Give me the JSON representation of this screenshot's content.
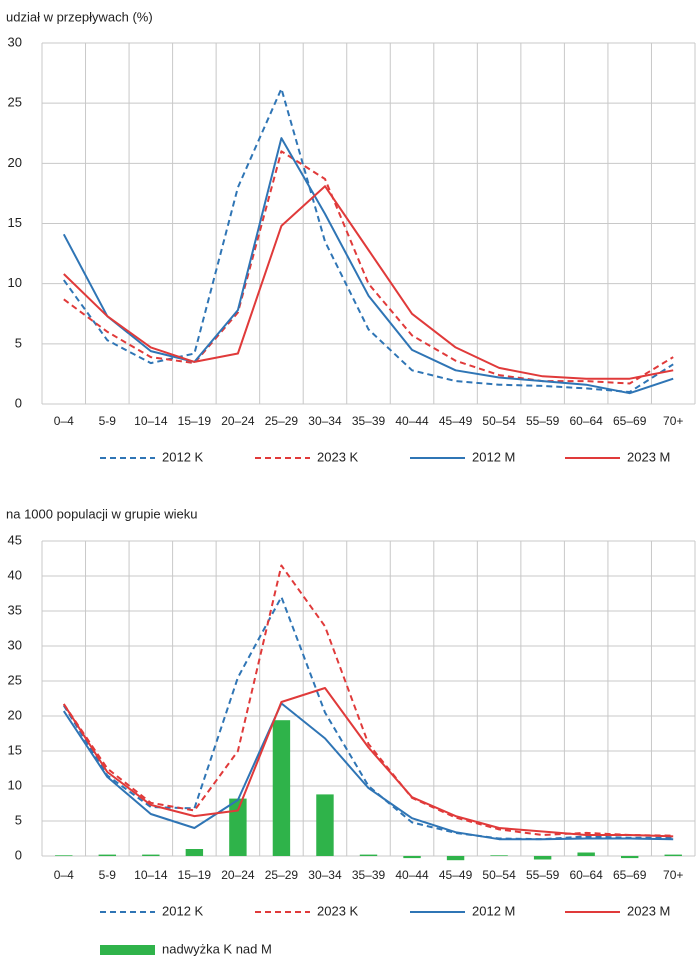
{
  "chart_data": [
    {
      "type": "line",
      "ylabel": "udział w przepływach (%)",
      "categories": [
        "0–4",
        "5-9",
        "10–14",
        "15–19",
        "20–24",
        "25–29",
        "30–34",
        "35–39",
        "40–44",
        "45–49",
        "50–54",
        "55–59",
        "60–64",
        "65–69",
        "70+"
      ],
      "ylim": [
        0,
        30
      ],
      "yticks": [
        0,
        5,
        10,
        15,
        20,
        25,
        30
      ],
      "grid": true,
      "series": [
        {
          "name": "2012 K",
          "type": "line",
          "color": "#2f75b5",
          "dashed": true,
          "values": [
            10.3,
            5.3,
            3.4,
            4.2,
            18,
            26.2,
            13.5,
            6.2,
            2.8,
            1.9,
            1.6,
            1.5,
            1.3,
            1.0,
            3.3
          ]
        },
        {
          "name": "2023 K",
          "type": "line",
          "color": "#e03a3a",
          "dashed": true,
          "values": [
            8.7,
            6.0,
            3.9,
            3.4,
            7.6,
            21,
            18.7,
            10,
            5.7,
            3.6,
            2.4,
            1.9,
            1.9,
            1.7,
            3.9
          ]
        },
        {
          "name": "2012 M",
          "type": "line",
          "color": "#2f75b5",
          "dashed": false,
          "values": [
            14.1,
            7.3,
            4.4,
            3.5,
            7.8,
            22.1,
            15.8,
            9,
            4.5,
            2.8,
            2.2,
            1.9,
            1.6,
            0.9,
            2.1
          ]
        },
        {
          "name": "2023 M",
          "type": "line",
          "color": "#e03a3a",
          "dashed": false,
          "values": [
            10.8,
            7.3,
            4.7,
            3.5,
            4.2,
            14.8,
            18.1,
            12.8,
            7.5,
            4.7,
            3.0,
            2.3,
            2.1,
            2.1,
            2.8
          ]
        }
      ]
    },
    {
      "type": "combo",
      "ylabel": "na 1000 populacji w grupie wieku",
      "categories": [
        "0–4",
        "5-9",
        "10–14",
        "15–19",
        "20–24",
        "25–29",
        "30–34",
        "35–39",
        "40–44",
        "45–49",
        "50–54",
        "55–59",
        "60–64",
        "65–69",
        "70+"
      ],
      "ylim": [
        0,
        45
      ],
      "yticks": [
        0,
        5,
        10,
        15,
        20,
        25,
        30,
        35,
        40,
        45
      ],
      "grid": true,
      "series": [
        {
          "name": "2012 K",
          "type": "line",
          "color": "#2f75b5",
          "dashed": true,
          "values": [
            21.5,
            11.5,
            7,
            6.8,
            25.5,
            37,
            20.5,
            10,
            4.8,
            3.3,
            2.5,
            2.4,
            2.8,
            2.6,
            2.6
          ]
        },
        {
          "name": "2023 K",
          "type": "line",
          "color": "#e03a3a",
          "dashed": true,
          "values": [
            21.7,
            12.5,
            7.6,
            6.5,
            15,
            41.5,
            32.8,
            16,
            8.3,
            5.5,
            3.8,
            3,
            3.3,
            3,
            2.9
          ]
        },
        {
          "name": "2012 M",
          "type": "line",
          "color": "#2f75b5",
          "dashed": false,
          "values": [
            20.7,
            11.3,
            6,
            4,
            8,
            21.8,
            16.8,
            9.7,
            5.4,
            3.4,
            2.4,
            2.4,
            2.5,
            2.5,
            2.4
          ]
        },
        {
          "name": "2023 M",
          "type": "line",
          "color": "#e03a3a",
          "dashed": false,
          "values": [
            21.7,
            12,
            7.3,
            5.7,
            6.5,
            22,
            24,
            15.5,
            8.4,
            5.7,
            4,
            3.5,
            3,
            3,
            2.8
          ]
        },
        {
          "name": "nadwyżka K nad M",
          "type": "bar",
          "color": "#2fb34a",
          "values": [
            0.1,
            0.2,
            0.2,
            1.0,
            8.2,
            19.4,
            8.8,
            0.2,
            -0.3,
            -0.6,
            0.1,
            -0.5,
            0.5,
            -0.3,
            0.2
          ]
        }
      ]
    }
  ]
}
